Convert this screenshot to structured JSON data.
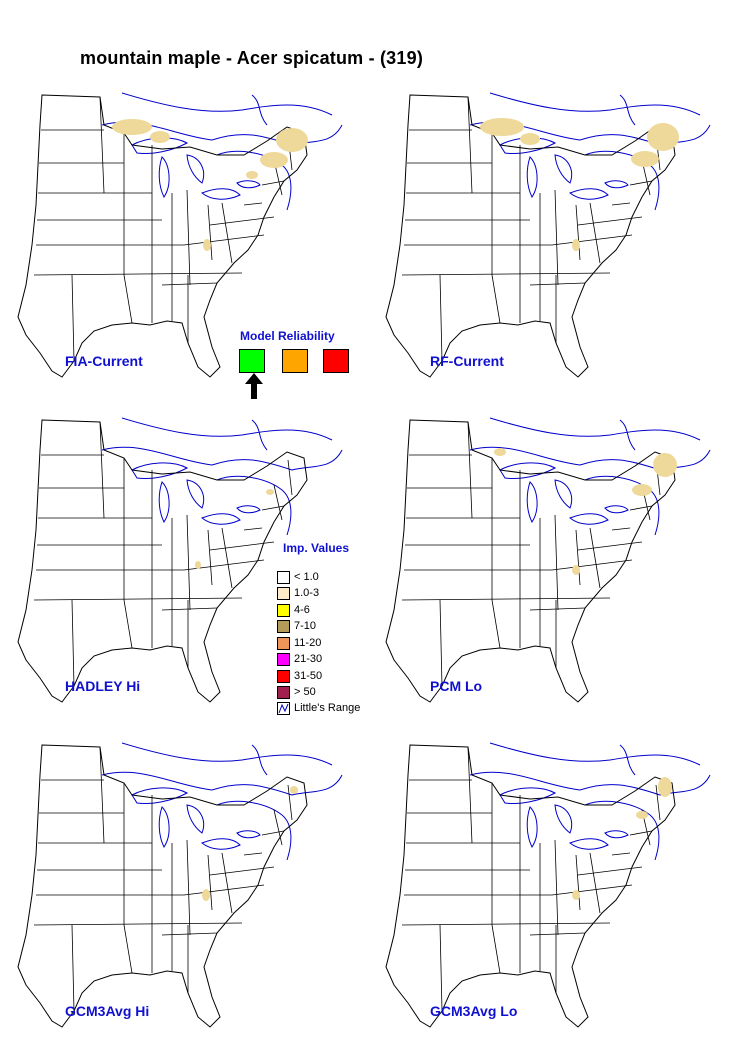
{
  "title": "mountain maple - Acer spicatum - (319)",
  "maps": [
    {
      "label": "FIA-Current"
    },
    {
      "label": "RF-Current"
    },
    {
      "label": "HADLEY Hi"
    },
    {
      "label": "PCM Lo"
    },
    {
      "label": "GCM3Avg Hi"
    },
    {
      "label": "GCM3Avg Lo"
    }
  ],
  "model_reliability": {
    "title": "Model Reliability",
    "boxes": [
      {
        "color": "#00ff00",
        "selected": true
      },
      {
        "color": "#ffa500",
        "selected": false
      },
      {
        "color": "#ff0000",
        "selected": false
      }
    ]
  },
  "legend": {
    "title": "Imp. Values",
    "items": [
      {
        "label": "< 1.0",
        "color": "#ffffff"
      },
      {
        "label": "1.0-3",
        "color": "#ffebc8"
      },
      {
        "label": "4-6",
        "color": "#ffff00"
      },
      {
        "label": "7-10",
        "color": "#b49b5a"
      },
      {
        "label": "11-20",
        "color": "#f0965a"
      },
      {
        "label": "21-30",
        "color": "#ff00ff"
      },
      {
        "label": "31-50",
        "color": "#ff0000"
      },
      {
        "label": "> 50",
        "color": "#a02050"
      },
      {
        "label": "Little's Range",
        "color": "#ffffff"
      }
    ]
  },
  "colors": {
    "label": "#1010d0",
    "range_line": "#0000cc",
    "presence": "#eed99a"
  }
}
